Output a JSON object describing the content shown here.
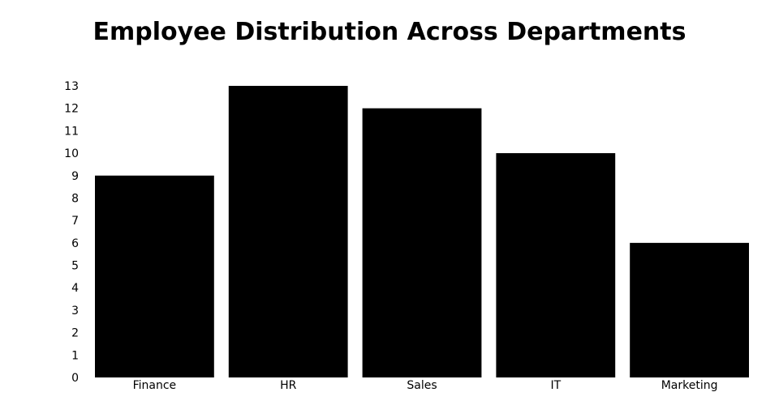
{
  "chart_data": {
    "type": "bar",
    "title": "Employee Distribution Across Departments",
    "xlabel": "",
    "ylabel": "",
    "categories": [
      "Finance",
      "HR",
      "Sales",
      "IT",
      "Marketing"
    ],
    "values": [
      9,
      13,
      12,
      10,
      6
    ],
    "ylim": [
      0,
      13
    ],
    "yticks": [
      0,
      1,
      2,
      3,
      4,
      5,
      6,
      7,
      8,
      9,
      10,
      11,
      12,
      13
    ],
    "grid": false,
    "legend": "none",
    "bar_color": "#000000"
  }
}
